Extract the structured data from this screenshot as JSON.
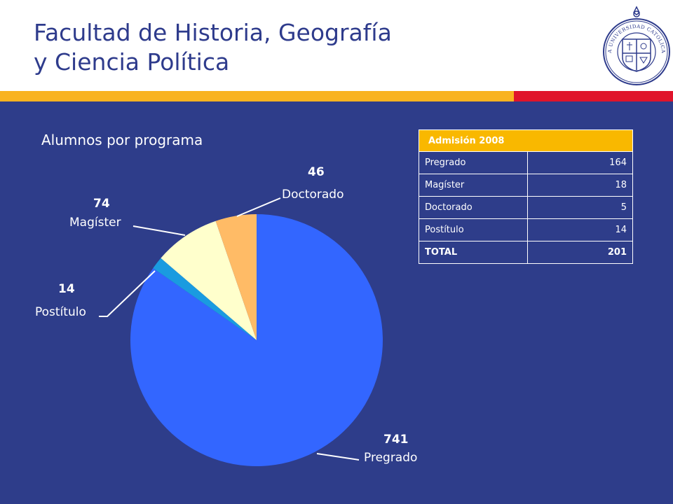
{
  "header": {
    "title_line1": "Facultad de Historia, Geografía",
    "title_line2": "y Ciencia Política",
    "logo_icon": "university-seal-icon",
    "logo_text": "PONTIFICIA UNIVERSIDAD CATOLICA DE CHILE"
  },
  "colors": {
    "title": "#2e3b8c",
    "background": "#2e3d8a",
    "stripe_yellow": "#f9b320",
    "stripe_red": "#e0142b",
    "table_header": "#f9b800"
  },
  "chart_data": {
    "type": "pie",
    "title": "Alumnos por programa",
    "slices": [
      {
        "label": "Pregrado",
        "value": 741,
        "color": "#3366ff"
      },
      {
        "label": "Postítulo",
        "value": 14,
        "color": "#1a9be0"
      },
      {
        "label": "Magíster",
        "value": 74,
        "color": "#ffffcc"
      },
      {
        "label": "Doctorado",
        "value": 46,
        "color": "#ffbb66"
      }
    ],
    "start": "12 o'clock",
    "direction": "clockwise"
  },
  "table": {
    "title": "Admisión 2008",
    "rows": [
      {
        "label": "Pregrado",
        "value": "164"
      },
      {
        "label": "Magíster",
        "value": "18"
      },
      {
        "label": "Doctorado",
        "value": "5"
      },
      {
        "label": "Postítulo",
        "value": "14"
      }
    ],
    "total": {
      "label": "TOTAL",
      "value": "201"
    }
  }
}
